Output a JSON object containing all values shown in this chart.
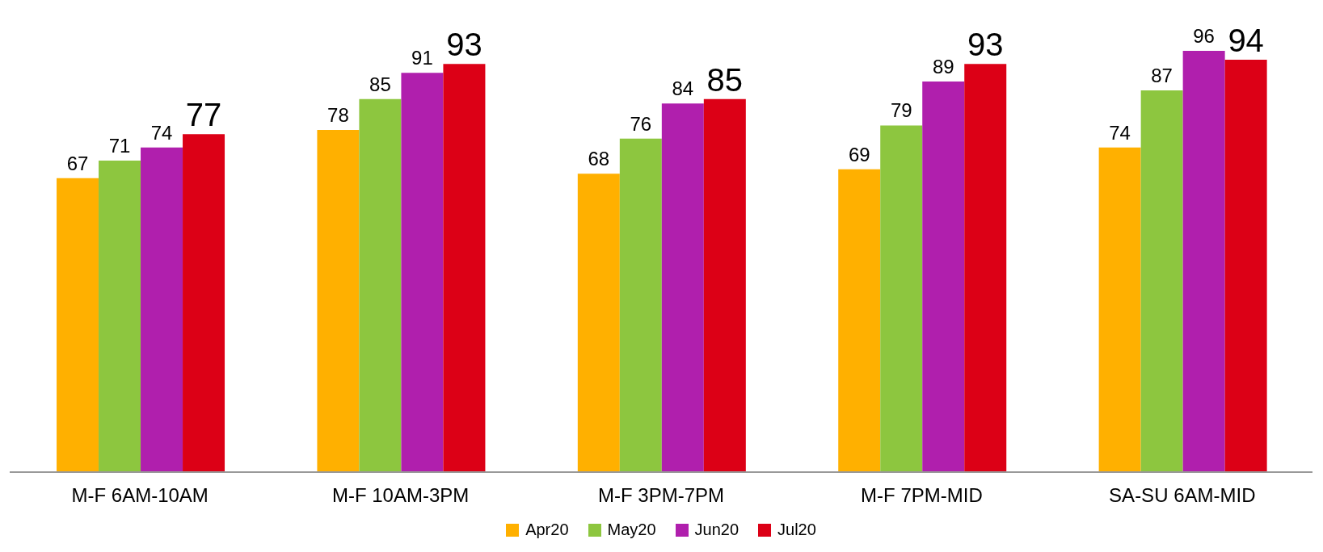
{
  "chart_data": {
    "type": "bar",
    "categories": [
      "M-F 6AM-10AM",
      "M-F 10AM-3PM",
      "M-F 3PM-7PM",
      "M-F 7PM-MID",
      "SA-SU 6AM-MID"
    ],
    "series": [
      {
        "name": "Apr20",
        "color": "#ffb000",
        "values": [
          67,
          78,
          68,
          69,
          74
        ]
      },
      {
        "name": "May20",
        "color": "#8dc63f",
        "values": [
          71,
          85,
          76,
          79,
          87
        ]
      },
      {
        "name": "Jun20",
        "color": "#b01fad",
        "values": [
          74,
          91,
          84,
          89,
          96
        ]
      },
      {
        "name": "Jul20",
        "color": "#dc0016",
        "values": [
          77,
          93,
          85,
          93,
          94
        ]
      }
    ],
    "data_labels": true,
    "legend": "bottom",
    "grid": false,
    "tick_labels": "x"
  }
}
